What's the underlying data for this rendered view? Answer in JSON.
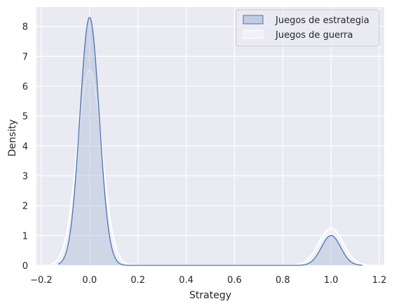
{
  "chart_data": {
    "type": "area",
    "xlabel": "Strategy",
    "ylabel": "Density",
    "xlim": [
      -0.22,
      1.22
    ],
    "ylim": [
      0,
      8.65
    ],
    "xticks": [
      -0.2,
      0.0,
      0.2,
      0.4,
      0.6,
      0.8,
      1.0,
      1.2
    ],
    "xtick_labels": [
      "−0.2",
      "0.0",
      "0.2",
      "0.4",
      "0.6",
      "0.8",
      "1.0",
      "1.2"
    ],
    "yticks": [
      0,
      1,
      2,
      3,
      4,
      5,
      6,
      7,
      8
    ],
    "ytick_labels": [
      "0",
      "1",
      "2",
      "3",
      "4",
      "5",
      "6",
      "7",
      "8"
    ],
    "grid": true,
    "legend_position": "top-right",
    "series": [
      {
        "name": "Juegos de estrategia",
        "color": "#4c72b0",
        "kde_peaks": [
          {
            "x": 0.0,
            "density": 8.3,
            "sd": 0.04
          },
          {
            "x": 1.0,
            "density": 1.0,
            "sd": 0.04
          }
        ],
        "x_range": [
          -0.13,
          1.13
        ]
      },
      {
        "name": "Juegos de guerra",
        "color": "#ffffff",
        "kde_peaks": [
          {
            "x": 0.0,
            "density": 6.55,
            "sd": 0.05
          },
          {
            "x": 1.0,
            "density": 1.25,
            "sd": 0.05
          }
        ],
        "x_range": [
          -0.16,
          1.16
        ]
      }
    ]
  },
  "colors": {
    "background": "#eaeaf2",
    "grid": "#ffffff"
  }
}
